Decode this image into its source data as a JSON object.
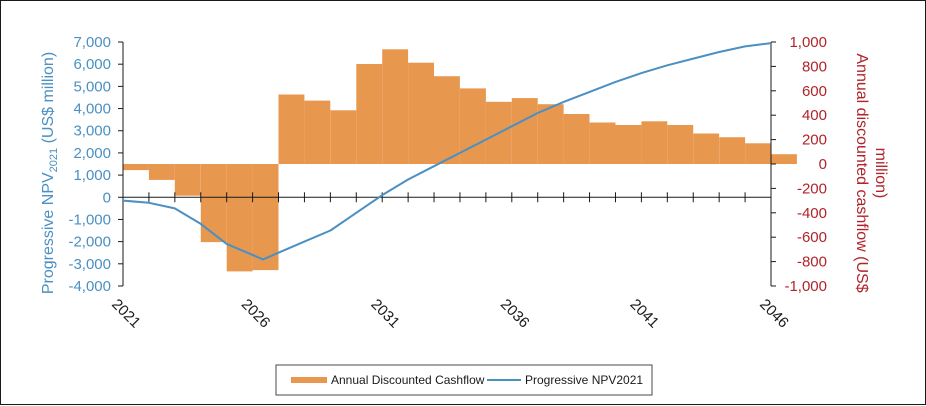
{
  "chart_data": {
    "type": "bar",
    "x": [
      2021,
      2022,
      2023,
      2024,
      2025,
      2026,
      2027,
      2028,
      2029,
      2030,
      2031,
      2032,
      2033,
      2034,
      2035,
      2036,
      2037,
      2038,
      2039,
      2040,
      2041,
      2042,
      2043,
      2044,
      2045,
      2046
    ],
    "xtick_labels": [
      "2021",
      "2026",
      "2031",
      "2036",
      "2041",
      "2046"
    ],
    "series": [
      {
        "name": "Annual Discounted Cashflow",
        "type": "bar",
        "axis": "right",
        "color": "#e8974f",
        "values": [
          -50,
          -130,
          -260,
          -640,
          -880,
          -870,
          570,
          520,
          440,
          820,
          940,
          830,
          720,
          620,
          510,
          540,
          490,
          410,
          340,
          320,
          350,
          320,
          250,
          220,
          170,
          80
        ]
      },
      {
        "name": "Progressive NPV2021",
        "type": "line",
        "axis": "left",
        "color": "#4a90c2",
        "x": [
          2021,
          2022,
          2023,
          2024,
          2025,
          2026.4,
          2027,
          2028,
          2029,
          2030,
          2031,
          2032,
          2033,
          2034,
          2035,
          2036,
          2037,
          2038,
          2039,
          2040,
          2041,
          2042,
          2043,
          2044,
          2045,
          2046
        ],
        "values": [
          -150,
          -250,
          -500,
          -1200,
          -2100,
          -2800,
          -2500,
          -2000,
          -1500,
          -700,
          100,
          800,
          1400,
          2000,
          2600,
          3200,
          3800,
          4300,
          4750,
          5200,
          5600,
          5950,
          6250,
          6550,
          6800,
          6950
        ]
      }
    ],
    "left_axis": {
      "label_main": "Progressive NPV",
      "label_sub": "2021",
      "label_end": " (US$ million)",
      "min": -4000,
      "max": 7000,
      "ticks": [
        "-4,000",
        "-3,000",
        "-2,000",
        "-1,000",
        "0",
        "1,000",
        "2,000",
        "3,000",
        "4,000",
        "5,000",
        "6,000",
        "7,000"
      ]
    },
    "right_axis": {
      "label_line1": "Annual discounted cashflow (US$",
      "label_line2": "million)",
      "min": -1000,
      "max": 1000,
      "ticks": [
        "-1,000",
        "-800",
        "-600",
        "-400",
        "-200",
        "0",
        "200",
        "400",
        "600",
        "800",
        "1,000"
      ]
    },
    "legend": {
      "position": "bottom",
      "items": [
        {
          "label": "Annual Discounted Cashflow",
          "color": "#e8974f",
          "kind": "bar"
        },
        {
          "label": "Progressive NPV2021",
          "color": "#4a90c2",
          "kind": "line"
        }
      ]
    },
    "grid": false
  }
}
